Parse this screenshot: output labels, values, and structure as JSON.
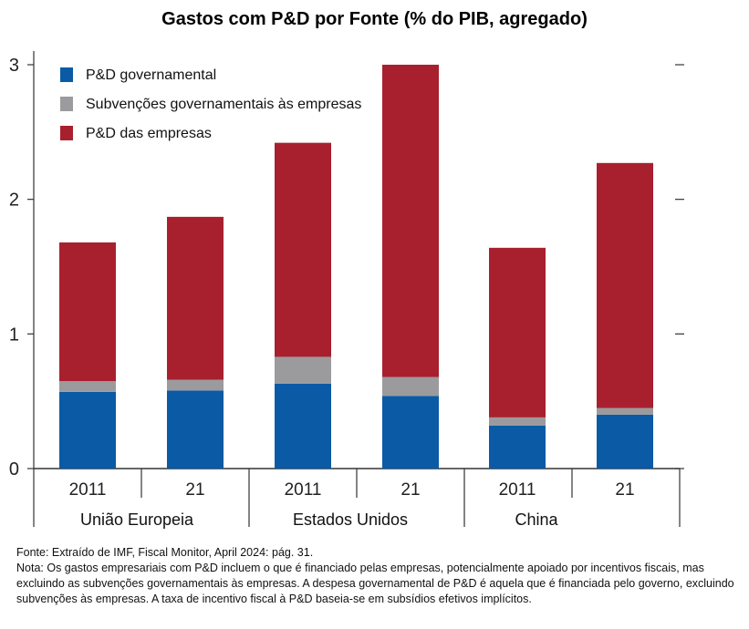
{
  "chart_data": {
    "type": "bar",
    "stacked": true,
    "title": "Gastos com P&D por Fonte (% do PIB, agregado)",
    "categories": [
      "2011",
      "21",
      "2011",
      "21",
      "2011",
      "21"
    ],
    "groups": [
      {
        "label": "União Europeia",
        "categories": [
          0,
          1
        ]
      },
      {
        "label": "Estados Unidos",
        "categories": [
          2,
          3
        ]
      },
      {
        "label": "China",
        "categories": [
          4,
          5
        ]
      }
    ],
    "series": [
      {
        "name": "P&D governamental",
        "color": "#0b5aa5",
        "values": [
          0.57,
          0.58,
          0.63,
          0.54,
          0.32,
          0.4
        ]
      },
      {
        "name": "Subvenções governamentais às empresas",
        "color": "#9b9b9d",
        "values": [
          0.08,
          0.08,
          0.2,
          0.14,
          0.06,
          0.05
        ]
      },
      {
        "name": "P&D das empresas",
        "color": "#a8202e",
        "values": [
          1.03,
          1.21,
          1.59,
          2.32,
          1.26,
          1.82
        ]
      }
    ],
    "ylim": [
      0,
      3
    ],
    "yticks": [
      "0",
      "1",
      "2",
      "3"
    ],
    "legend_position": "top-left",
    "grid": false
  },
  "notes": {
    "source": "Fonte: Extraído de IMF, Fiscal Monitor, April 2024:  pág. 31.",
    "note": "Nota: Os gastos empresariais com P&D incluem o que é financiado pelas empresas, potencialmente apoiado por incentivos fiscais, mas excluindo as subvenções governamentais às empresas. A despesa governamental de P&D é aquela que é financiada pelo governo, excluindo subvenções às empresas. A taxa de incentivo fiscal à P&D baseia-se em subsídios efetivos implícitos."
  }
}
